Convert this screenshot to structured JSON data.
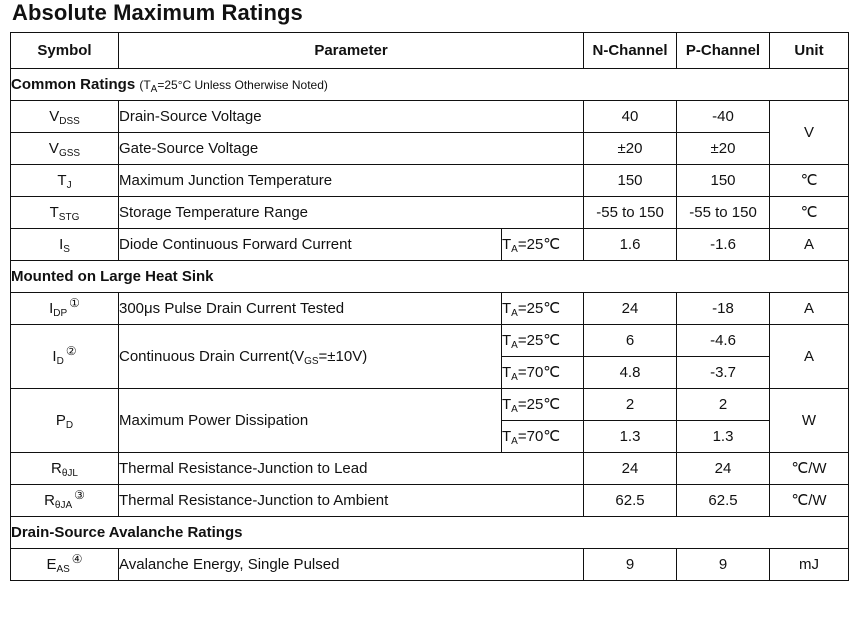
{
  "title": "Absolute Maximum Ratings",
  "headers": {
    "symbol": "Symbol",
    "parameter": "Parameter",
    "n_channel": "N-Channel",
    "p_channel": "P-Channel",
    "unit": "Unit"
  },
  "sections": {
    "common": {
      "label": "Common Ratings",
      "note_prefix": "(T",
      "note_sub": "A",
      "note_suffix": "=25°C Unless Otherwise Noted)"
    },
    "heatsink": {
      "label": "Mounted on Large Heat Sink"
    },
    "avalanche": {
      "label": "Drain-Source Avalanche Ratings"
    }
  },
  "rows": {
    "vdss": {
      "sym": "V",
      "sub": "DSS",
      "param": "Drain-Source Voltage",
      "n": "40",
      "p": "-40"
    },
    "vgss": {
      "sym": "V",
      "sub": "GSS",
      "param": "Gate-Source Voltage",
      "n": "±20",
      "p": "±20",
      "unit": "V"
    },
    "tj": {
      "sym": "T",
      "sub": "J",
      "param": "Maximum Junction Temperature",
      "n": "150",
      "p": "150",
      "unit": "℃"
    },
    "tstg": {
      "sym": "T",
      "sub": "STG",
      "param": "Storage Temperature Range",
      "n": "-55 to 150",
      "p": "-55 to 150",
      "unit": "℃"
    },
    "is": {
      "sym": "I",
      "sub": "S",
      "param": "Diode Continuous Forward Current",
      "cond_t": "T",
      "cond_sub": "A",
      "cond_val": "=25℃",
      "n": "1.6",
      "p": "-1.6",
      "unit": "A"
    },
    "idp": {
      "sym": "I",
      "sub": "DP",
      "mark": "①",
      "param": "300μs Pulse Drain Current Tested",
      "cond_t": "T",
      "cond_sub": "A",
      "cond_val": "=25℃",
      "n": "24",
      "p": "-18",
      "unit": "A"
    },
    "id": {
      "sym": "I",
      "sub": "D",
      "mark": "②",
      "param_prefix": "Continuous Drain Current(V",
      "param_sub": "GS",
      "param_suffix": "=±10V)",
      "cond1_t": "T",
      "cond1_sub": "A",
      "cond1_val": "=25℃",
      "n1": "6",
      "p1": "-4.6",
      "cond2_t": "T",
      "cond2_sub": "A",
      "cond2_val": "=70℃",
      "n2": "4.8",
      "p2": "-3.7",
      "unit": "A"
    },
    "pd": {
      "sym": "P",
      "sub": "D",
      "param": "Maximum Power Dissipation",
      "cond1_t": "T",
      "cond1_sub": "A",
      "cond1_val": "=25℃",
      "n1": "2",
      "p1": "2",
      "cond2_t": "T",
      "cond2_sub": "A",
      "cond2_val": "=70℃",
      "n2": "1.3",
      "p2": "1.3",
      "unit": "W"
    },
    "rjl": {
      "sym": "R",
      "sub": "θJL",
      "param": "Thermal Resistance-Junction to Lead",
      "n": "24",
      "p": "24",
      "unit": "℃/W"
    },
    "rja": {
      "sym": "R",
      "sub": "θJA",
      "mark": "③",
      "param": "Thermal Resistance-Junction to Ambient",
      "n": "62.5",
      "p": "62.5",
      "unit": "℃/W"
    },
    "eas": {
      "sym": "E",
      "sub": "AS",
      "mark": "④",
      "param": "Avalanche Energy, Single Pulsed",
      "n": "9",
      "p": "9",
      "unit": "mJ"
    }
  }
}
